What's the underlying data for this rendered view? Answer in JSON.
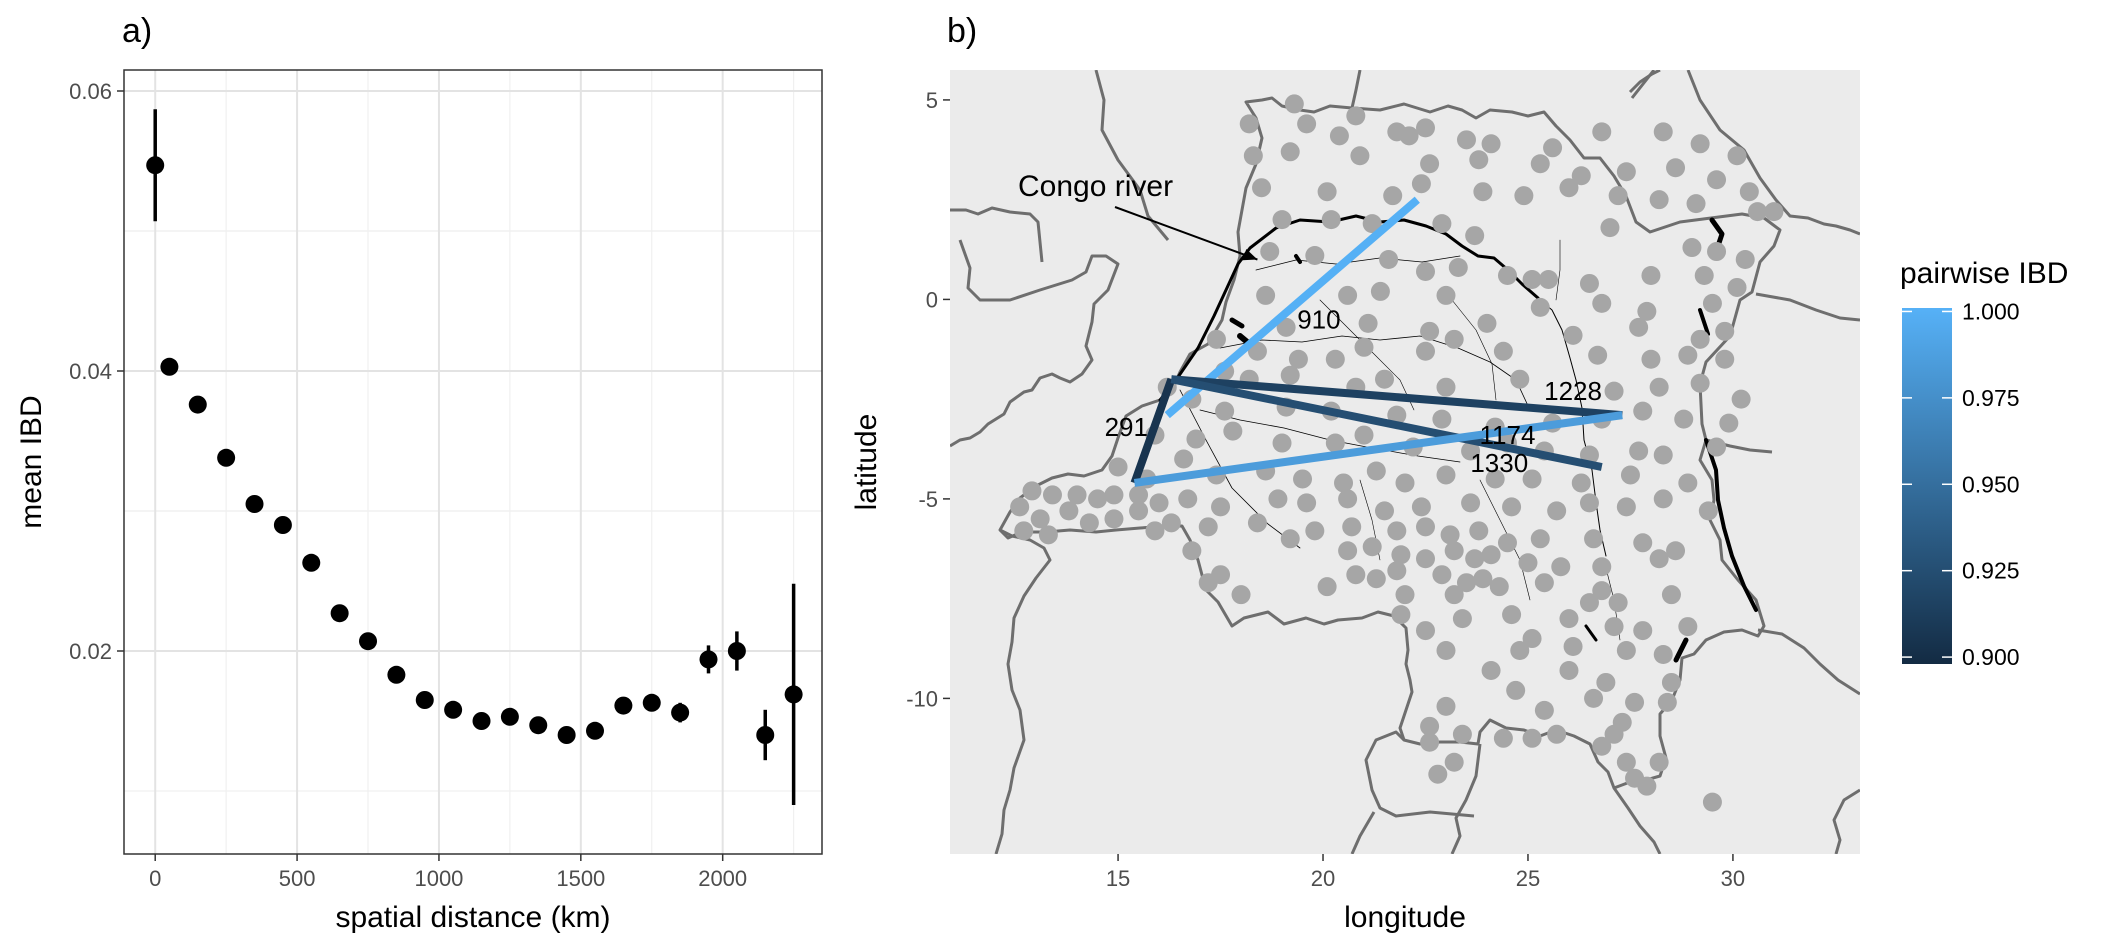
{
  "panel_a": {
    "title": "a)",
    "chart_data": {
      "type": "scatter",
      "xlabel": "spatial distance (km)",
      "ylabel": "mean IBD",
      "xlim": [
        -110,
        2350
      ],
      "ylim": [
        0.0055,
        0.0615
      ],
      "xticks": [
        0,
        500,
        1000,
        1500,
        2000
      ],
      "yticks": [
        0.02,
        0.04,
        0.06
      ],
      "xtick_labels": [
        "0",
        "500",
        "1000",
        "1500",
        "2000"
      ],
      "ytick_labels": [
        "0.02",
        "0.04",
        "0.06"
      ],
      "grid": true,
      "points": [
        {
          "x": 0,
          "y": 0.0547,
          "lo": 0.0507,
          "hi": 0.0587
        },
        {
          "x": 50,
          "y": 0.0403,
          "lo": 0.0398,
          "hi": 0.0408
        },
        {
          "x": 150,
          "y": 0.0376,
          "lo": 0.0374,
          "hi": 0.0378
        },
        {
          "x": 250,
          "y": 0.0338,
          "lo": 0.0336,
          "hi": 0.034
        },
        {
          "x": 350,
          "y": 0.0305,
          "lo": 0.0303,
          "hi": 0.0307
        },
        {
          "x": 450,
          "y": 0.029,
          "lo": 0.0288,
          "hi": 0.0292
        },
        {
          "x": 550,
          "y": 0.0263,
          "lo": 0.0261,
          "hi": 0.0265
        },
        {
          "x": 650,
          "y": 0.0227,
          "lo": 0.0225,
          "hi": 0.0229
        },
        {
          "x": 750,
          "y": 0.0207,
          "lo": 0.0205,
          "hi": 0.0209
        },
        {
          "x": 850,
          "y": 0.0183,
          "lo": 0.0181,
          "hi": 0.0185
        },
        {
          "x": 950,
          "y": 0.0165,
          "lo": 0.0163,
          "hi": 0.0167
        },
        {
          "x": 1050,
          "y": 0.0158,
          "lo": 0.0156,
          "hi": 0.016
        },
        {
          "x": 1150,
          "y": 0.015,
          "lo": 0.0148,
          "hi": 0.0152
        },
        {
          "x": 1250,
          "y": 0.0153,
          "lo": 0.0151,
          "hi": 0.0155
        },
        {
          "x": 1350,
          "y": 0.0147,
          "lo": 0.0145,
          "hi": 0.0149
        },
        {
          "x": 1450,
          "y": 0.014,
          "lo": 0.0138,
          "hi": 0.0142
        },
        {
          "x": 1550,
          "y": 0.0143,
          "lo": 0.0141,
          "hi": 0.0145
        },
        {
          "x": 1650,
          "y": 0.0161,
          "lo": 0.0157,
          "hi": 0.0165
        },
        {
          "x": 1750,
          "y": 0.0163,
          "lo": 0.0158,
          "hi": 0.0168
        },
        {
          "x": 1850,
          "y": 0.0156,
          "lo": 0.0149,
          "hi": 0.0163
        },
        {
          "x": 1950,
          "y": 0.0194,
          "lo": 0.0184,
          "hi": 0.0204
        },
        {
          "x": 2050,
          "y": 0.02,
          "lo": 0.0186,
          "hi": 0.0214
        },
        {
          "x": 2150,
          "y": 0.014,
          "lo": 0.0122,
          "hi": 0.0158
        },
        {
          "x": 2250,
          "y": 0.0169,
          "lo": 0.009,
          "hi": 0.0248
        }
      ]
    }
  },
  "panel_b": {
    "title": "b)",
    "chart_data": {
      "type": "scatter",
      "xlabel": "longitude",
      "ylabel": "latitude",
      "xlim": [
        10.9,
        33.1
      ],
      "ylim": [
        -13.9,
        5.75
      ],
      "xticks": [
        15,
        20,
        25,
        30
      ],
      "yticks": [
        5,
        0,
        -5,
        -10
      ],
      "xtick_labels": [
        "15",
        "20",
        "25",
        "30"
      ],
      "ytick_labels": [
        "5",
        "0",
        "-5",
        "-10"
      ],
      "annotation": "Congo river",
      "annotation_target": [
        18.4,
        1.0
      ],
      "colors": {
        "low": "#132b43",
        "high": "#56b1f7",
        "point": "#a6a6a6",
        "panel": "#ebebeb",
        "border": "#6e6e6e"
      },
      "legend": {
        "title": "pairwise IBD",
        "position": "right",
        "breaks": [
          1.0,
          0.975,
          0.95,
          0.925,
          0.9
        ],
        "labels": [
          "1.000",
          "0.975",
          "0.950",
          "0.925",
          "0.900"
        ],
        "range": [
          0.898,
          1.001
        ]
      },
      "connections": [
        {
          "label": "910",
          "ibd": 1.0,
          "from": [
            16.2,
            -2.9
          ],
          "to": [
            22.3,
            2.5
          ],
          "label_at": [
            19.9,
            -0.5
          ]
        },
        {
          "label": "291",
          "ibd": 0.905,
          "from": [
            15.4,
            -4.6
          ],
          "to": [
            16.3,
            -2.0
          ],
          "label_at": [
            15.2,
            -3.2
          ]
        },
        {
          "label": "1228",
          "ibd": 0.915,
          "from": [
            16.3,
            -2.0
          ],
          "to": [
            27.3,
            -2.9
          ],
          "label_at": [
            26.1,
            -2.3
          ]
        },
        {
          "label": "1174",
          "ibd": 0.925,
          "from": [
            16.3,
            -2.0
          ],
          "to": [
            26.8,
            -4.2
          ],
          "label_at": [
            24.5,
            -3.4
          ]
        },
        {
          "label": "1330",
          "ibd": 0.985,
          "from": [
            15.4,
            -4.6
          ],
          "to": [
            27.3,
            -2.9
          ],
          "label_at": [
            24.3,
            -4.1
          ]
        }
      ],
      "points": [
        [
          19.3,
          4.9
        ],
        [
          20.8,
          4.6
        ],
        [
          21.8,
          4.2
        ],
        [
          22.5,
          4.3
        ],
        [
          23.5,
          4.0
        ],
        [
          18.2,
          4.4
        ],
        [
          19.6,
          4.4
        ],
        [
          20.4,
          4.1
        ],
        [
          22.1,
          4.1
        ],
        [
          24.1,
          3.9
        ],
        [
          25.6,
          3.8
        ],
        [
          26.8,
          4.2
        ],
        [
          28.3,
          4.2
        ],
        [
          29.2,
          3.9
        ],
        [
          30.1,
          3.6
        ],
        [
          18.3,
          3.6
        ],
        [
          19.2,
          3.7
        ],
        [
          20.9,
          3.6
        ],
        [
          22.6,
          3.4
        ],
        [
          23.8,
          3.5
        ],
        [
          25.3,
          3.4
        ],
        [
          26.3,
          3.1
        ],
        [
          27.4,
          3.2
        ],
        [
          28.6,
          3.3
        ],
        [
          29.6,
          3.0
        ],
        [
          30.4,
          2.7
        ],
        [
          18.5,
          2.8
        ],
        [
          20.1,
          2.7
        ],
        [
          21.7,
          2.6
        ],
        [
          22.4,
          2.9
        ],
        [
          23.9,
          2.7
        ],
        [
          24.9,
          2.6
        ],
        [
          26.0,
          2.8
        ],
        [
          27.2,
          2.6
        ],
        [
          28.2,
          2.5
        ],
        [
          29.1,
          2.4
        ],
        [
          30.6,
          2.2
        ],
        [
          31.0,
          2.2
        ],
        [
          19.0,
          2.0
        ],
        [
          20.2,
          2.0
        ],
        [
          21.2,
          1.9
        ],
        [
          22.9,
          1.9
        ],
        [
          23.7,
          1.6
        ],
        [
          27.0,
          1.8
        ],
        [
          29.0,
          1.3
        ],
        [
          29.6,
          1.2
        ],
        [
          30.3,
          1.0
        ],
        [
          18.7,
          1.2
        ],
        [
          19.8,
          1.1
        ],
        [
          21.6,
          1.0
        ],
        [
          22.5,
          0.7
        ],
        [
          23.3,
          0.8
        ],
        [
          24.5,
          0.6
        ],
        [
          25.1,
          0.5
        ],
        [
          25.5,
          0.5
        ],
        [
          26.5,
          0.4
        ],
        [
          28.0,
          0.6
        ],
        [
          29.3,
          0.6
        ],
        [
          30.1,
          0.3
        ],
        [
          18.6,
          0.1
        ],
        [
          20.6,
          0.1
        ],
        [
          21.4,
          0.2
        ],
        [
          23.0,
          0.1
        ],
        [
          25.3,
          -0.2
        ],
        [
          26.8,
          -0.1
        ],
        [
          27.9,
          -0.3
        ],
        [
          29.5,
          -0.1
        ],
        [
          19.1,
          -0.7
        ],
        [
          21.1,
          -0.6
        ],
        [
          22.6,
          -0.8
        ],
        [
          24.0,
          -0.6
        ],
        [
          26.1,
          -0.9
        ],
        [
          27.7,
          -0.7
        ],
        [
          29.2,
          -1.0
        ],
        [
          29.8,
          -0.8
        ],
        [
          17.4,
          -1.0
        ],
        [
          18.4,
          -1.3
        ],
        [
          19.4,
          -1.5
        ],
        [
          20.3,
          -1.5
        ],
        [
          21.0,
          -1.2
        ],
        [
          22.5,
          -1.3
        ],
        [
          23.2,
          -1.0
        ],
        [
          24.4,
          -1.3
        ],
        [
          26.7,
          -1.4
        ],
        [
          28.0,
          -1.5
        ],
        [
          28.9,
          -1.4
        ],
        [
          29.8,
          -1.5
        ],
        [
          17.6,
          -1.8
        ],
        [
          18.2,
          -2.0
        ],
        [
          19.2,
          -1.9
        ],
        [
          20.8,
          -2.2
        ],
        [
          21.5,
          -2.0
        ],
        [
          23.0,
          -2.2
        ],
        [
          24.8,
          -2.0
        ],
        [
          27.1,
          -2.3
        ],
        [
          28.2,
          -2.2
        ],
        [
          29.2,
          -2.1
        ],
        [
          30.2,
          -2.5
        ],
        [
          16.2,
          -2.2
        ],
        [
          16.8,
          -2.5
        ],
        [
          17.6,
          -2.8
        ],
        [
          19.1,
          -2.7
        ],
        [
          20.2,
          -2.8
        ],
        [
          21.8,
          -2.9
        ],
        [
          22.9,
          -3.0
        ],
        [
          24.2,
          -3.2
        ],
        [
          25.6,
          -3.1
        ],
        [
          26.8,
          -3.0
        ],
        [
          27.8,
          -2.8
        ],
        [
          28.8,
          -3.0
        ],
        [
          29.9,
          -3.1
        ],
        [
          15.9,
          -3.4
        ],
        [
          16.9,
          -3.5
        ],
        [
          17.8,
          -3.3
        ],
        [
          19.0,
          -3.6
        ],
        [
          20.3,
          -3.6
        ],
        [
          21.0,
          -3.4
        ],
        [
          22.2,
          -3.7
        ],
        [
          23.6,
          -3.8
        ],
        [
          24.5,
          -3.6
        ],
        [
          25.4,
          -3.8
        ],
        [
          26.5,
          -3.9
        ],
        [
          27.7,
          -3.8
        ],
        [
          28.3,
          -3.9
        ],
        [
          29.6,
          -3.7
        ],
        [
          15.0,
          -4.2
        ],
        [
          15.7,
          -4.5
        ],
        [
          16.6,
          -4.0
        ],
        [
          17.4,
          -4.4
        ],
        [
          18.6,
          -4.3
        ],
        [
          19.5,
          -4.5
        ],
        [
          20.5,
          -4.6
        ],
        [
          21.3,
          -4.3
        ],
        [
          22.0,
          -4.6
        ],
        [
          23.0,
          -4.4
        ],
        [
          24.2,
          -4.5
        ],
        [
          25.1,
          -4.5
        ],
        [
          26.3,
          -4.6
        ],
        [
          27.5,
          -4.4
        ],
        [
          28.9,
          -4.6
        ],
        [
          12.9,
          -4.8
        ],
        [
          13.4,
          -4.9
        ],
        [
          14.0,
          -4.9
        ],
        [
          14.5,
          -5.0
        ],
        [
          14.9,
          -4.9
        ],
        [
          15.5,
          -4.9
        ],
        [
          16.0,
          -5.1
        ],
        [
          16.7,
          -5.0
        ],
        [
          17.5,
          -5.2
        ],
        [
          18.9,
          -5.0
        ],
        [
          19.6,
          -5.1
        ],
        [
          20.6,
          -5.0
        ],
        [
          21.5,
          -5.3
        ],
        [
          22.4,
          -5.2
        ],
        [
          23.6,
          -5.1
        ],
        [
          24.6,
          -5.2
        ],
        [
          25.7,
          -5.3
        ],
        [
          26.5,
          -5.1
        ],
        [
          27.4,
          -5.2
        ],
        [
          28.3,
          -5.0
        ],
        [
          29.4,
          -5.3
        ],
        [
          12.6,
          -5.2
        ],
        [
          13.1,
          -5.5
        ],
        [
          13.8,
          -5.3
        ],
        [
          14.3,
          -5.6
        ],
        [
          14.9,
          -5.5
        ],
        [
          15.5,
          -5.3
        ],
        [
          16.3,
          -5.6
        ],
        [
          17.2,
          -5.7
        ],
        [
          18.4,
          -5.6
        ],
        [
          19.8,
          -5.8
        ],
        [
          20.7,
          -5.7
        ],
        [
          21.8,
          -5.8
        ],
        [
          22.5,
          -5.7
        ],
        [
          23.1,
          -5.9
        ],
        [
          23.8,
          -5.8
        ],
        [
          24.5,
          -6.1
        ],
        [
          25.3,
          -6.0
        ],
        [
          26.6,
          -6.0
        ],
        [
          27.8,
          -6.1
        ],
        [
          28.6,
          -6.3
        ],
        [
          12.7,
          -5.8
        ],
        [
          13.3,
          -5.9
        ],
        [
          15.9,
          -5.8
        ],
        [
          16.8,
          -6.3
        ],
        [
          19.2,
          -6.0
        ],
        [
          20.6,
          -6.3
        ],
        [
          21.2,
          -6.2
        ],
        [
          21.9,
          -6.4
        ],
        [
          22.5,
          -6.5
        ],
        [
          23.2,
          -6.3
        ],
        [
          23.7,
          -6.5
        ],
        [
          24.1,
          -6.4
        ],
        [
          25.0,
          -6.6
        ],
        [
          25.8,
          -6.7
        ],
        [
          26.8,
          -6.7
        ],
        [
          28.2,
          -6.5
        ],
        [
          17.5,
          -6.9
        ],
        [
          20.8,
          -6.9
        ],
        [
          21.3,
          -7.0
        ],
        [
          21.8,
          -6.8
        ],
        [
          22.9,
          -6.9
        ],
        [
          23.5,
          -7.1
        ],
        [
          24.3,
          -7.2
        ],
        [
          25.4,
          -7.1
        ],
        [
          26.8,
          -7.3
        ],
        [
          17.2,
          -7.1
        ],
        [
          18.0,
          -7.4
        ],
        [
          20.1,
          -7.2
        ],
        [
          22.0,
          -7.4
        ],
        [
          23.2,
          -7.4
        ],
        [
          23.9,
          -7.0
        ],
        [
          27.2,
          -7.6
        ],
        [
          28.5,
          -7.4
        ],
        [
          21.9,
          -7.9
        ],
        [
          23.4,
          -8.0
        ],
        [
          24.6,
          -7.9
        ],
        [
          26.0,
          -8.0
        ],
        [
          26.5,
          -7.6
        ],
        [
          27.1,
          -8.2
        ],
        [
          22.5,
          -8.3
        ],
        [
          25.1,
          -8.5
        ],
        [
          27.8,
          -8.3
        ],
        [
          28.9,
          -8.2
        ],
        [
          23.0,
          -8.8
        ],
        [
          24.8,
          -8.8
        ],
        [
          26.1,
          -8.7
        ],
        [
          27.4,
          -8.8
        ],
        [
          28.3,
          -8.9
        ],
        [
          24.1,
          -9.3
        ],
        [
          26.0,
          -9.3
        ],
        [
          26.9,
          -9.6
        ],
        [
          28.5,
          -9.6
        ],
        [
          24.7,
          -9.8
        ],
        [
          26.6,
          -10.0
        ],
        [
          27.6,
          -10.1
        ],
        [
          23.0,
          -10.2
        ],
        [
          25.4,
          -10.3
        ],
        [
          27.3,
          -10.6
        ],
        [
          28.4,
          -10.1
        ],
        [
          22.6,
          -10.7
        ],
        [
          23.4,
          -10.9
        ],
        [
          24.4,
          -11.0
        ],
        [
          25.7,
          -10.9
        ],
        [
          27.1,
          -10.9
        ],
        [
          22.6,
          -11.1
        ],
        [
          25.1,
          -11.0
        ],
        [
          26.8,
          -11.2
        ],
        [
          27.4,
          -11.6
        ],
        [
          28.2,
          -11.6
        ],
        [
          27.6,
          -12.0
        ],
        [
          27.9,
          -12.2
        ],
        [
          29.5,
          -12.6
        ],
        [
          22.8,
          -11.9
        ],
        [
          23.2,
          -11.6
        ]
      ]
    }
  }
}
